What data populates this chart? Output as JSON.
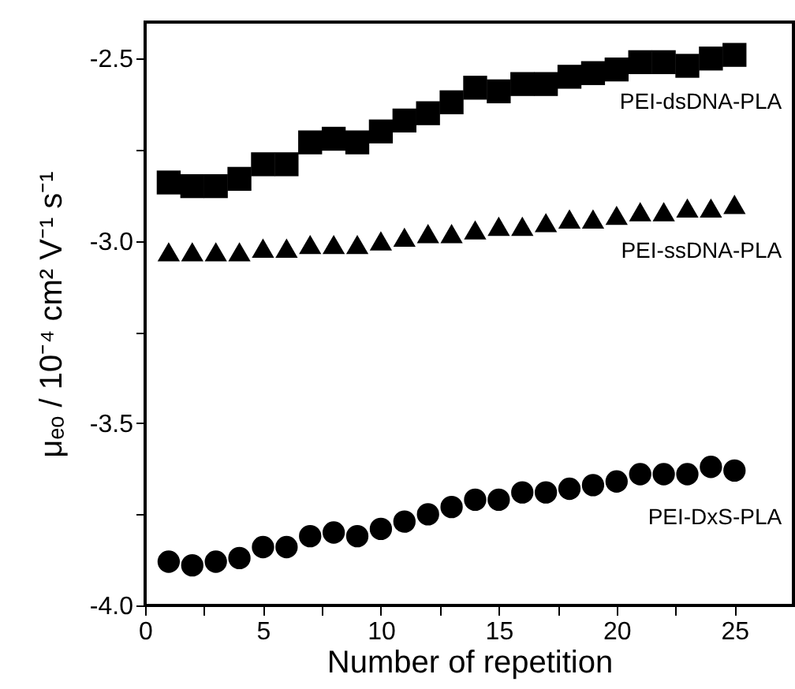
{
  "chart_data": {
    "type": "scatter",
    "xlabel": "Number of repetition",
    "ylabel": "μₑₒ / 10⁻⁴ cm² V⁻¹ s⁻¹",
    "x": [
      1,
      2,
      3,
      4,
      5,
      6,
      7,
      8,
      9,
      10,
      11,
      12,
      13,
      14,
      15,
      16,
      17,
      18,
      19,
      20,
      21,
      22,
      23,
      24,
      25
    ],
    "xlim": [
      0,
      27.5
    ],
    "xticks": [
      0,
      {
        "value": 2.5,
        "label": null
      },
      5,
      {
        "value": 7.5,
        "label": null
      },
      10,
      {
        "value": 12.5,
        "label": null
      },
      15,
      {
        "value": 17.5,
        "label": null
      },
      20,
      {
        "value": 22.5,
        "label": null
      },
      25
    ],
    "ylim": [
      -4.0,
      -2.4
    ],
    "yticks": [
      {
        "value": -4.0,
        "label": "-4.0"
      },
      {
        "value": -3.75,
        "label": null
      },
      -3.5,
      {
        "value": -3.25,
        "label": null
      },
      {
        "value": -3.0,
        "label": "-3.0"
      },
      {
        "value": -2.75,
        "label": null
      },
      -2.5
    ],
    "grid": false,
    "series": [
      {
        "name": "PEI-dsDNA-PLA",
        "color": "#000000",
        "marker": "square",
        "values": [
          -2.84,
          -2.85,
          -2.85,
          -2.83,
          -2.79,
          -2.79,
          -2.73,
          -2.72,
          -2.73,
          -2.7,
          -2.67,
          -2.65,
          -2.62,
          -2.58,
          -2.59,
          -2.57,
          -2.57,
          -2.55,
          -2.54,
          -2.53,
          -2.51,
          -2.51,
          -2.52,
          -2.5,
          -2.49
        ]
      },
      {
        "name": "PEI-ssDNA-PLA",
        "color": "#000000",
        "marker": "triangle",
        "values": [
          -3.03,
          -3.03,
          -3.03,
          -3.03,
          -3.02,
          -3.02,
          -3.01,
          -3.01,
          -3.01,
          -3.0,
          -2.99,
          -2.98,
          -2.98,
          -2.97,
          -2.96,
          -2.96,
          -2.95,
          -2.94,
          -2.94,
          -2.93,
          -2.92,
          -2.92,
          -2.91,
          -2.91,
          -2.9
        ]
      },
      {
        "name": "PEI-DxS-PLA",
        "color": "#000000",
        "marker": "circle",
        "values": [
          -3.88,
          -3.89,
          -3.88,
          -3.87,
          -3.84,
          -3.84,
          -3.81,
          -3.8,
          -3.81,
          -3.79,
          -3.77,
          -3.75,
          -3.73,
          -3.71,
          -3.71,
          -3.69,
          -3.69,
          -3.68,
          -3.67,
          -3.66,
          -3.64,
          -3.64,
          -3.64,
          -3.62,
          -3.63
        ]
      }
    ]
  }
}
